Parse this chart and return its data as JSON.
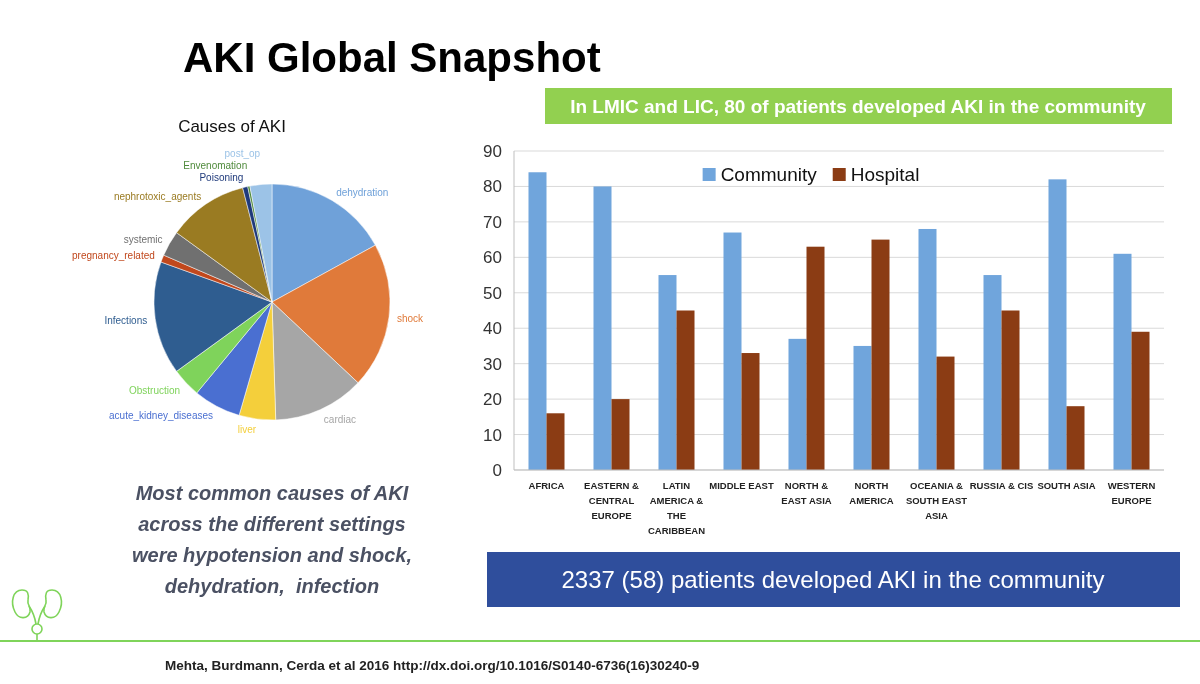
{
  "chart_data": [
    {
      "type": "pie",
      "title": "Causes of AKI",
      "categories": [
        "dehydration",
        "shock",
        "cardiac",
        "liver",
        "acute_kidney_diseases",
        "Obstruction",
        "Infections",
        "pregnancy_related",
        "systemic",
        "nephrotoxic_agents",
        "Poisoning",
        "Envenomation",
        "post_op"
      ],
      "values": [
        17,
        20,
        12.5,
        5,
        6.5,
        4,
        15.5,
        1,
        3.5,
        11,
        0.7,
        0.3,
        3
      ],
      "colors": [
        "#6fa1d9",
        "#e07a3a",
        "#a6a6a6",
        "#f4cf3b",
        "#4a6fd1",
        "#7fd35b",
        "#2f5d90",
        "#c1481d",
        "#707070",
        "#9a7b22",
        "#1f3a7b",
        "#4f8a3b",
        "#9cc3e7"
      ],
      "annotations": [
        "AKI Global Snapshot",
        "Most common causes of AKI across the different settings were hypotension and shock, dehydration,  infection"
      ]
    },
    {
      "type": "bar",
      "categories": [
        "AFRICA",
        "EASTERN & CENTRAL EUROPE",
        "LATIN AMERICA & THE CARIBBEAN",
        "MIDDLE EAST",
        "NORTH & EAST ASIA",
        "NORTH AMERICA",
        "OCEANIA & SOUTH EAST ASIA",
        "RUSSIA & CIS",
        "SOUTH ASIA",
        "WESTERN EUROPE"
      ],
      "series": [
        {
          "name": "Community",
          "color": "#70a5dc",
          "values": [
            84,
            80,
            55,
            67,
            37,
            35,
            68,
            55,
            82,
            61
          ]
        },
        {
          "name": "Hospital",
          "color": "#8b3c14",
          "values": [
            16,
            20,
            45,
            33,
            63,
            65,
            32,
            45,
            18,
            39
          ]
        }
      ],
      "ylim": [
        0,
        90
      ],
      "yticks": [
        0,
        10,
        20,
        30,
        40,
        50,
        60,
        70,
        80,
        90
      ],
      "grid": "y",
      "legend": "top",
      "annotations": [
        "In LMIC and LIC, 80 of patients developed AKI in the community",
        "2337 (58) patients developed AKI in the community",
        "Mehta, Burdmann, Cerda et al 2016 http://dx.doi.org/10.1016/S0140-6736(16)30240-9"
      ]
    }
  ]
}
